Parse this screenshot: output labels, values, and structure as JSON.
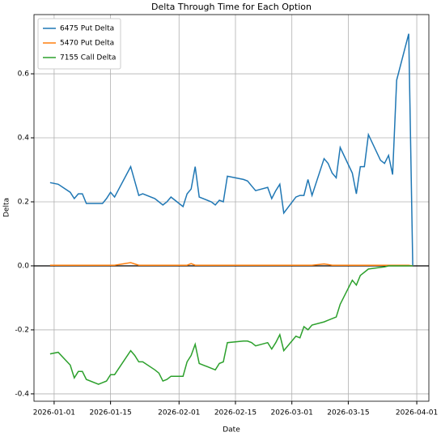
{
  "chart_data": {
    "type": "line",
    "title": "Delta Through Time for Each Option",
    "xlabel": "Date",
    "ylabel": "Delta",
    "x": [
      "2025-12-31",
      "2026-01-02",
      "2026-01-05",
      "2026-01-06",
      "2026-01-07",
      "2026-01-08",
      "2026-01-09",
      "2026-01-12",
      "2026-01-13",
      "2026-01-14",
      "2026-01-15",
      "2026-01-16",
      "2026-01-20",
      "2026-01-21",
      "2026-01-22",
      "2026-01-23",
      "2026-01-26",
      "2026-01-27",
      "2026-01-28",
      "2026-01-29",
      "2026-01-30",
      "2026-02-02",
      "2026-02-03",
      "2026-02-04",
      "2026-02-05",
      "2026-02-06",
      "2026-02-09",
      "2026-02-10",
      "2026-02-11",
      "2026-02-12",
      "2026-02-13",
      "2026-02-17",
      "2026-02-18",
      "2026-02-19",
      "2026-02-20",
      "2026-02-23",
      "2026-02-24",
      "2026-02-25",
      "2026-02-26",
      "2026-02-27",
      "2026-03-02",
      "2026-03-03",
      "2026-03-04",
      "2026-03-05",
      "2026-03-06",
      "2026-03-09",
      "2026-03-10",
      "2026-03-11",
      "2026-03-12",
      "2026-03-13",
      "2026-03-16",
      "2026-03-17",
      "2026-03-18",
      "2026-03-19",
      "2026-03-20",
      "2026-03-23",
      "2026-03-24",
      "2026-03-25",
      "2026-03-26",
      "2026-03-27",
      "2026-03-30",
      "2026-03-31"
    ],
    "series": [
      {
        "name": "6475 Put Delta",
        "color": "#1f77b4",
        "values": [
          0.26,
          0.255,
          0.23,
          0.21,
          0.225,
          0.225,
          0.195,
          0.195,
          0.195,
          0.21,
          0.23,
          0.215,
          0.31,
          0.265,
          0.22,
          0.225,
          0.21,
          0.2,
          0.19,
          0.2,
          0.215,
          0.185,
          0.225,
          0.24,
          0.31,
          0.215,
          0.2,
          0.19,
          0.205,
          0.2,
          0.28,
          0.27,
          0.265,
          0.25,
          0.235,
          0.245,
          0.21,
          0.235,
          0.255,
          0.165,
          0.215,
          0.22,
          0.22,
          0.27,
          0.22,
          0.335,
          0.32,
          0.29,
          0.275,
          0.37,
          0.29,
          0.225,
          0.31,
          0.31,
          0.41,
          0.33,
          0.32,
          0.345,
          0.285,
          0.58,
          0.725,
          0
        ]
      },
      {
        "name": "5470 Put Delta",
        "color": "#ff7f0e",
        "values": [
          0.002,
          0.002,
          0.002,
          0.002,
          0.002,
          0.002,
          0.002,
          0.002,
          0.002,
          0.002,
          0.002,
          0.002,
          0.01,
          0.006,
          0.002,
          0.002,
          0.002,
          0.002,
          0.002,
          0.002,
          0.002,
          0.002,
          0.002,
          0.007,
          0.002,
          0.002,
          0.002,
          0.002,
          0.002,
          0.002,
          0.002,
          0.002,
          0.002,
          0.002,
          0.002,
          0.002,
          0.002,
          0.002,
          0.002,
          0.002,
          0.002,
          0.002,
          0.002,
          0.002,
          0.002,
          0.006,
          0.004,
          0.002,
          0.002,
          0.002,
          0.002,
          0.002,
          0.002,
          0.002,
          0.002,
          0.002,
          0.002,
          0.002,
          0.002,
          0.002,
          0.002,
          0
        ]
      },
      {
        "name": "7155 Call Delta",
        "color": "#2ca02c",
        "values": [
          -0.275,
          -0.27,
          -0.31,
          -0.35,
          -0.33,
          -0.33,
          -0.355,
          -0.37,
          -0.365,
          -0.36,
          -0.34,
          -0.34,
          -0.265,
          -0.28,
          -0.3,
          -0.3,
          -0.325,
          -0.335,
          -0.36,
          -0.355,
          -0.345,
          -0.345,
          -0.3,
          -0.28,
          -0.245,
          -0.305,
          -0.32,
          -0.325,
          -0.305,
          -0.3,
          -0.24,
          -0.235,
          -0.235,
          -0.24,
          -0.25,
          -0.24,
          -0.26,
          -0.24,
          -0.215,
          -0.265,
          -0.22,
          -0.225,
          -0.19,
          -0.2,
          -0.185,
          -0.175,
          -0.17,
          -0.165,
          -0.16,
          -0.12,
          -0.045,
          -0.06,
          -0.03,
          -0.02,
          -0.01,
          -0.005,
          -0.003,
          0,
          0,
          0,
          0,
          0
        ]
      }
    ],
    "xlim": [
      "2025-12-27",
      "2026-04-04"
    ],
    "xticks": [
      "2026-01-01",
      "2026-01-15",
      "2026-02-01",
      "2026-02-15",
      "2026-03-01",
      "2026-03-15",
      "2026-04-01"
    ],
    "ylim": [
      -0.423,
      0.785
    ],
    "yticks": [
      -0.4,
      -0.2,
      {
        "value": 0,
        "label": "0.0"
      },
      0.2,
      0.4,
      0.6
    ],
    "hline": 0,
    "grid": true,
    "legend": "upper left"
  }
}
